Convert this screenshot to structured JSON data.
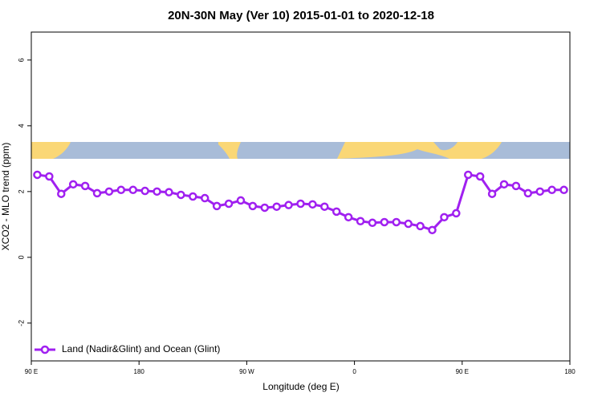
{
  "chart_data": {
    "type": "line",
    "title": "20N-30N May (Ver 10)   2015-01-01 to 2020-12-18",
    "x_label": "Longitude (deg E)",
    "y_label": "XCO2 - MLO trend (ppm)",
    "x": [
      95,
      105,
      115,
      125,
      135,
      145,
      155,
      165,
      175,
      185,
      195,
      205,
      215,
      225,
      235,
      245,
      255,
      265,
      275,
      285,
      295,
      305,
      315,
      325,
      335,
      345,
      355,
      365,
      375,
      385,
      395,
      405,
      415,
      425,
      435,
      445,
      455,
      465,
      475,
      485,
      495,
      505,
      515,
      525,
      535
    ],
    "series": [
      {
        "name": "Land (Nadir&Glint) and Ocean (Glint)",
        "color": "#a020f0",
        "values": [
          2.51,
          2.46,
          1.93,
          2.22,
          2.17,
          1.95,
          2.0,
          2.05,
          2.05,
          2.02,
          2.0,
          1.98,
          1.9,
          1.85,
          1.8,
          1.56,
          1.63,
          1.73,
          1.56,
          1.51,
          1.54,
          1.59,
          1.63,
          1.61,
          1.54,
          1.39,
          1.22,
          1.1,
          1.05,
          1.07,
          1.07,
          1.02,
          0.95,
          0.83,
          1.22,
          1.34,
          2.51,
          2.46,
          1.93,
          2.22,
          2.17,
          1.95,
          2.0,
          2.05,
          2.05
        ]
      }
    ],
    "xlim": [
      90,
      540
    ],
    "xticks": [
      {
        "value": 90,
        "label": "90 E"
      },
      {
        "value": 180,
        "label": "180"
      },
      {
        "value": 270,
        "label": "90 W"
      },
      {
        "value": 360,
        "label": "0"
      },
      {
        "value": 450,
        "label": "90 E"
      },
      {
        "value": 540,
        "label": "180"
      }
    ],
    "ylim": [
      -3.15,
      6.85
    ],
    "yticks": [
      -2,
      0,
      2,
      4,
      6
    ],
    "legend": "bottom-left"
  }
}
